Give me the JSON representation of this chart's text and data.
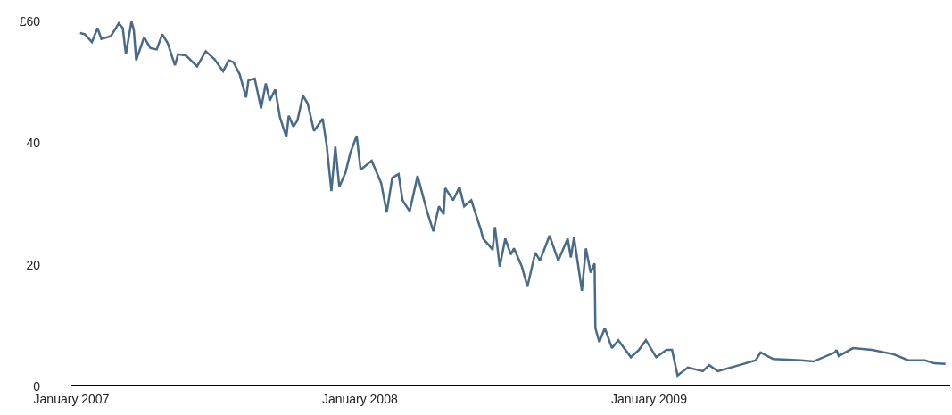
{
  "chart_data": {
    "type": "line",
    "x": [
      "2007-01-12",
      "2007-01-18",
      "2007-01-27",
      "2007-02-03",
      "2007-02-08",
      "2007-02-20",
      "2007-03-02",
      "2007-03-07",
      "2007-03-11",
      "2007-03-18",
      "2007-03-21",
      "2007-03-24",
      "2007-04-03",
      "2007-04-11",
      "2007-04-19",
      "2007-04-26",
      "2007-05-03",
      "2007-05-12",
      "2007-05-16",
      "2007-05-26",
      "2007-06-09",
      "2007-06-20",
      "2007-07-01",
      "2007-07-12",
      "2007-07-19",
      "2007-07-25",
      "2007-08-02",
      "2007-08-10",
      "2007-08-13",
      "2007-08-21",
      "2007-08-29",
      "2007-09-04",
      "2007-09-09",
      "2007-09-16",
      "2007-09-22",
      "2007-09-30",
      "2007-10-03",
      "2007-10-09",
      "2007-10-14",
      "2007-10-21",
      "2007-10-27",
      "2007-11-04",
      "2007-11-15",
      "2007-11-20",
      "2007-11-26",
      "2007-12-01",
      "2007-12-06",
      "2007-12-14",
      "2007-12-20",
      "2007-12-28",
      "2008-01-02",
      "2008-01-16",
      "2008-01-28",
      "2008-02-04",
      "2008-02-11",
      "2008-02-19",
      "2008-02-24",
      "2008-03-04",
      "2008-03-14",
      "2008-03-26",
      "2008-04-03",
      "2008-04-10",
      "2008-04-16",
      "2008-04-18",
      "2008-04-28",
      "2008-05-06",
      "2008-05-12",
      "2008-05-21",
      "2008-06-02",
      "2008-06-05",
      "2008-06-17",
      "2008-06-20",
      "2008-06-26",
      "2008-07-03",
      "2008-07-10",
      "2008-07-14",
      "2008-07-24",
      "2008-07-31",
      "2008-08-10",
      "2008-08-16",
      "2008-08-28",
      "2008-09-08",
      "2008-09-20",
      "2008-09-24",
      "2008-09-28",
      "2008-10-08",
      "2008-10-13",
      "2008-10-19",
      "2008-10-24",
      "2008-10-25",
      "2008-10-30",
      "2008-11-06",
      "2008-11-15",
      "2008-11-23",
      "2008-12-09",
      "2008-12-19",
      "2008-12-28",
      "2009-01-10",
      "2009-01-23",
      "2009-01-30",
      "2009-02-06",
      "2009-02-19",
      "2009-03-10",
      "2009-03-18",
      "2009-03-29",
      "2009-04-25",
      "2009-05-16",
      "2009-05-22",
      "2009-06-07",
      "2009-07-12",
      "2009-07-28",
      "2009-08-24",
      "2009-08-26",
      "2009-08-29",
      "2009-09-16",
      "2009-10-10",
      "2009-11-06",
      "2009-11-25",
      "2009-12-16",
      "2009-12-28",
      "2010-01-11"
    ],
    "series": [
      {
        "color": "#4a6a8a",
        "values": [
          58.1,
          57.9,
          56.6,
          58.9,
          57.1,
          57.6,
          59.7,
          58.9,
          54.6,
          60,
          58.6,
          53.6,
          57.4,
          55.6,
          55.4,
          57.9,
          56.4,
          52.8,
          54.6,
          54.4,
          52.6,
          55.1,
          53.8,
          51.8,
          53.6,
          53.3,
          51.3,
          47.5,
          50.3,
          50.6,
          45.7,
          49.8,
          47.0,
          48.8,
          44.2,
          41.0,
          44.5,
          42.7,
          43.7,
          47.8,
          46.5,
          42.0,
          44.0,
          39.7,
          32.1,
          39.4,
          32.8,
          35.2,
          38.4,
          41.2,
          35.6,
          37.1,
          33.4,
          28.6,
          34.3,
          34.9,
          30.6,
          28.8,
          34.6,
          28.8,
          25.5,
          29.6,
          28.3,
          32.6,
          30.6,
          32.8,
          29.6,
          30.6,
          25.8,
          24.3,
          22.5,
          26.2,
          19.7,
          24.3,
          21.7,
          22.7,
          19.7,
          16.4,
          22.0,
          20.7,
          24.8,
          20.7,
          24.3,
          21.2,
          24.5,
          15.7,
          22.7,
          18.7,
          20.2,
          9.6,
          7.3,
          9.6,
          6.3,
          7.6,
          4.8,
          6.0,
          7.6,
          4.8,
          6.0,
          6.0,
          1.8,
          3.1,
          2.5,
          3.5,
          2.5,
          3.5,
          4.3,
          5.6,
          4.5,
          4.3,
          4.1,
          5.6,
          6.0,
          5.0,
          6.3,
          6.0,
          5.3,
          4.3,
          4.3,
          3.8,
          3.7
        ]
      }
    ],
    "xlim": [
      "2007-01-01",
      "2010-01-17"
    ],
    "xticks": [
      {
        "value": "2007-01-01",
        "label": "January 2007"
      },
      {
        "value": "2008-01-01",
        "label": "January 2008"
      },
      {
        "value": "2009-01-01",
        "label": "January 2009"
      }
    ],
    "ylim": [
      0,
      60
    ],
    "yticks": [
      0,
      20,
      40,
      {
        "value": 60,
        "label": "£60"
      }
    ],
    "grid": false,
    "marker": "none",
    "line_style": "solid"
  }
}
